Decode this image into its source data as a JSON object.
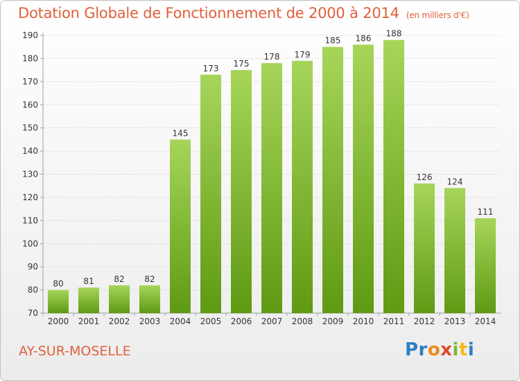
{
  "chart_data": {
    "type": "bar",
    "title": "Dotation Globale de Fonctionnement de 2000 à 2014",
    "subtitle": "(en milliers d'€)",
    "categories": [
      "2000",
      "2001",
      "2002",
      "2003",
      "2004",
      "2005",
      "2006",
      "2007",
      "2008",
      "2009",
      "2010",
      "2011",
      "2012",
      "2013",
      "2014"
    ],
    "values": [
      80,
      81,
      82,
      82,
      145,
      173,
      175,
      178,
      179,
      185,
      186,
      188,
      126,
      124,
      111
    ],
    "ylim": [
      70,
      190
    ],
    "yticks": [
      70,
      80,
      90,
      100,
      110,
      120,
      130,
      140,
      150,
      160,
      170,
      180,
      190
    ],
    "grid": true,
    "bar_color_top": "#a6d55a",
    "bar_color_bottom": "#5f9a13",
    "axis_color": "#9e9e9e"
  },
  "footer": {
    "commune": "AY-SUR-MOSELLE",
    "logo_letters": [
      "Pr",
      "o",
      "x",
      "i",
      "t",
      "i"
    ]
  },
  "colors": {
    "title": "#e0603b",
    "logo_blue": "#2d7fc4",
    "logo_orange": "#f08a1c",
    "logo_red": "#e54a2c",
    "logo_green": "#7ab934",
    "logo_yellow": "#f2bb1b"
  }
}
